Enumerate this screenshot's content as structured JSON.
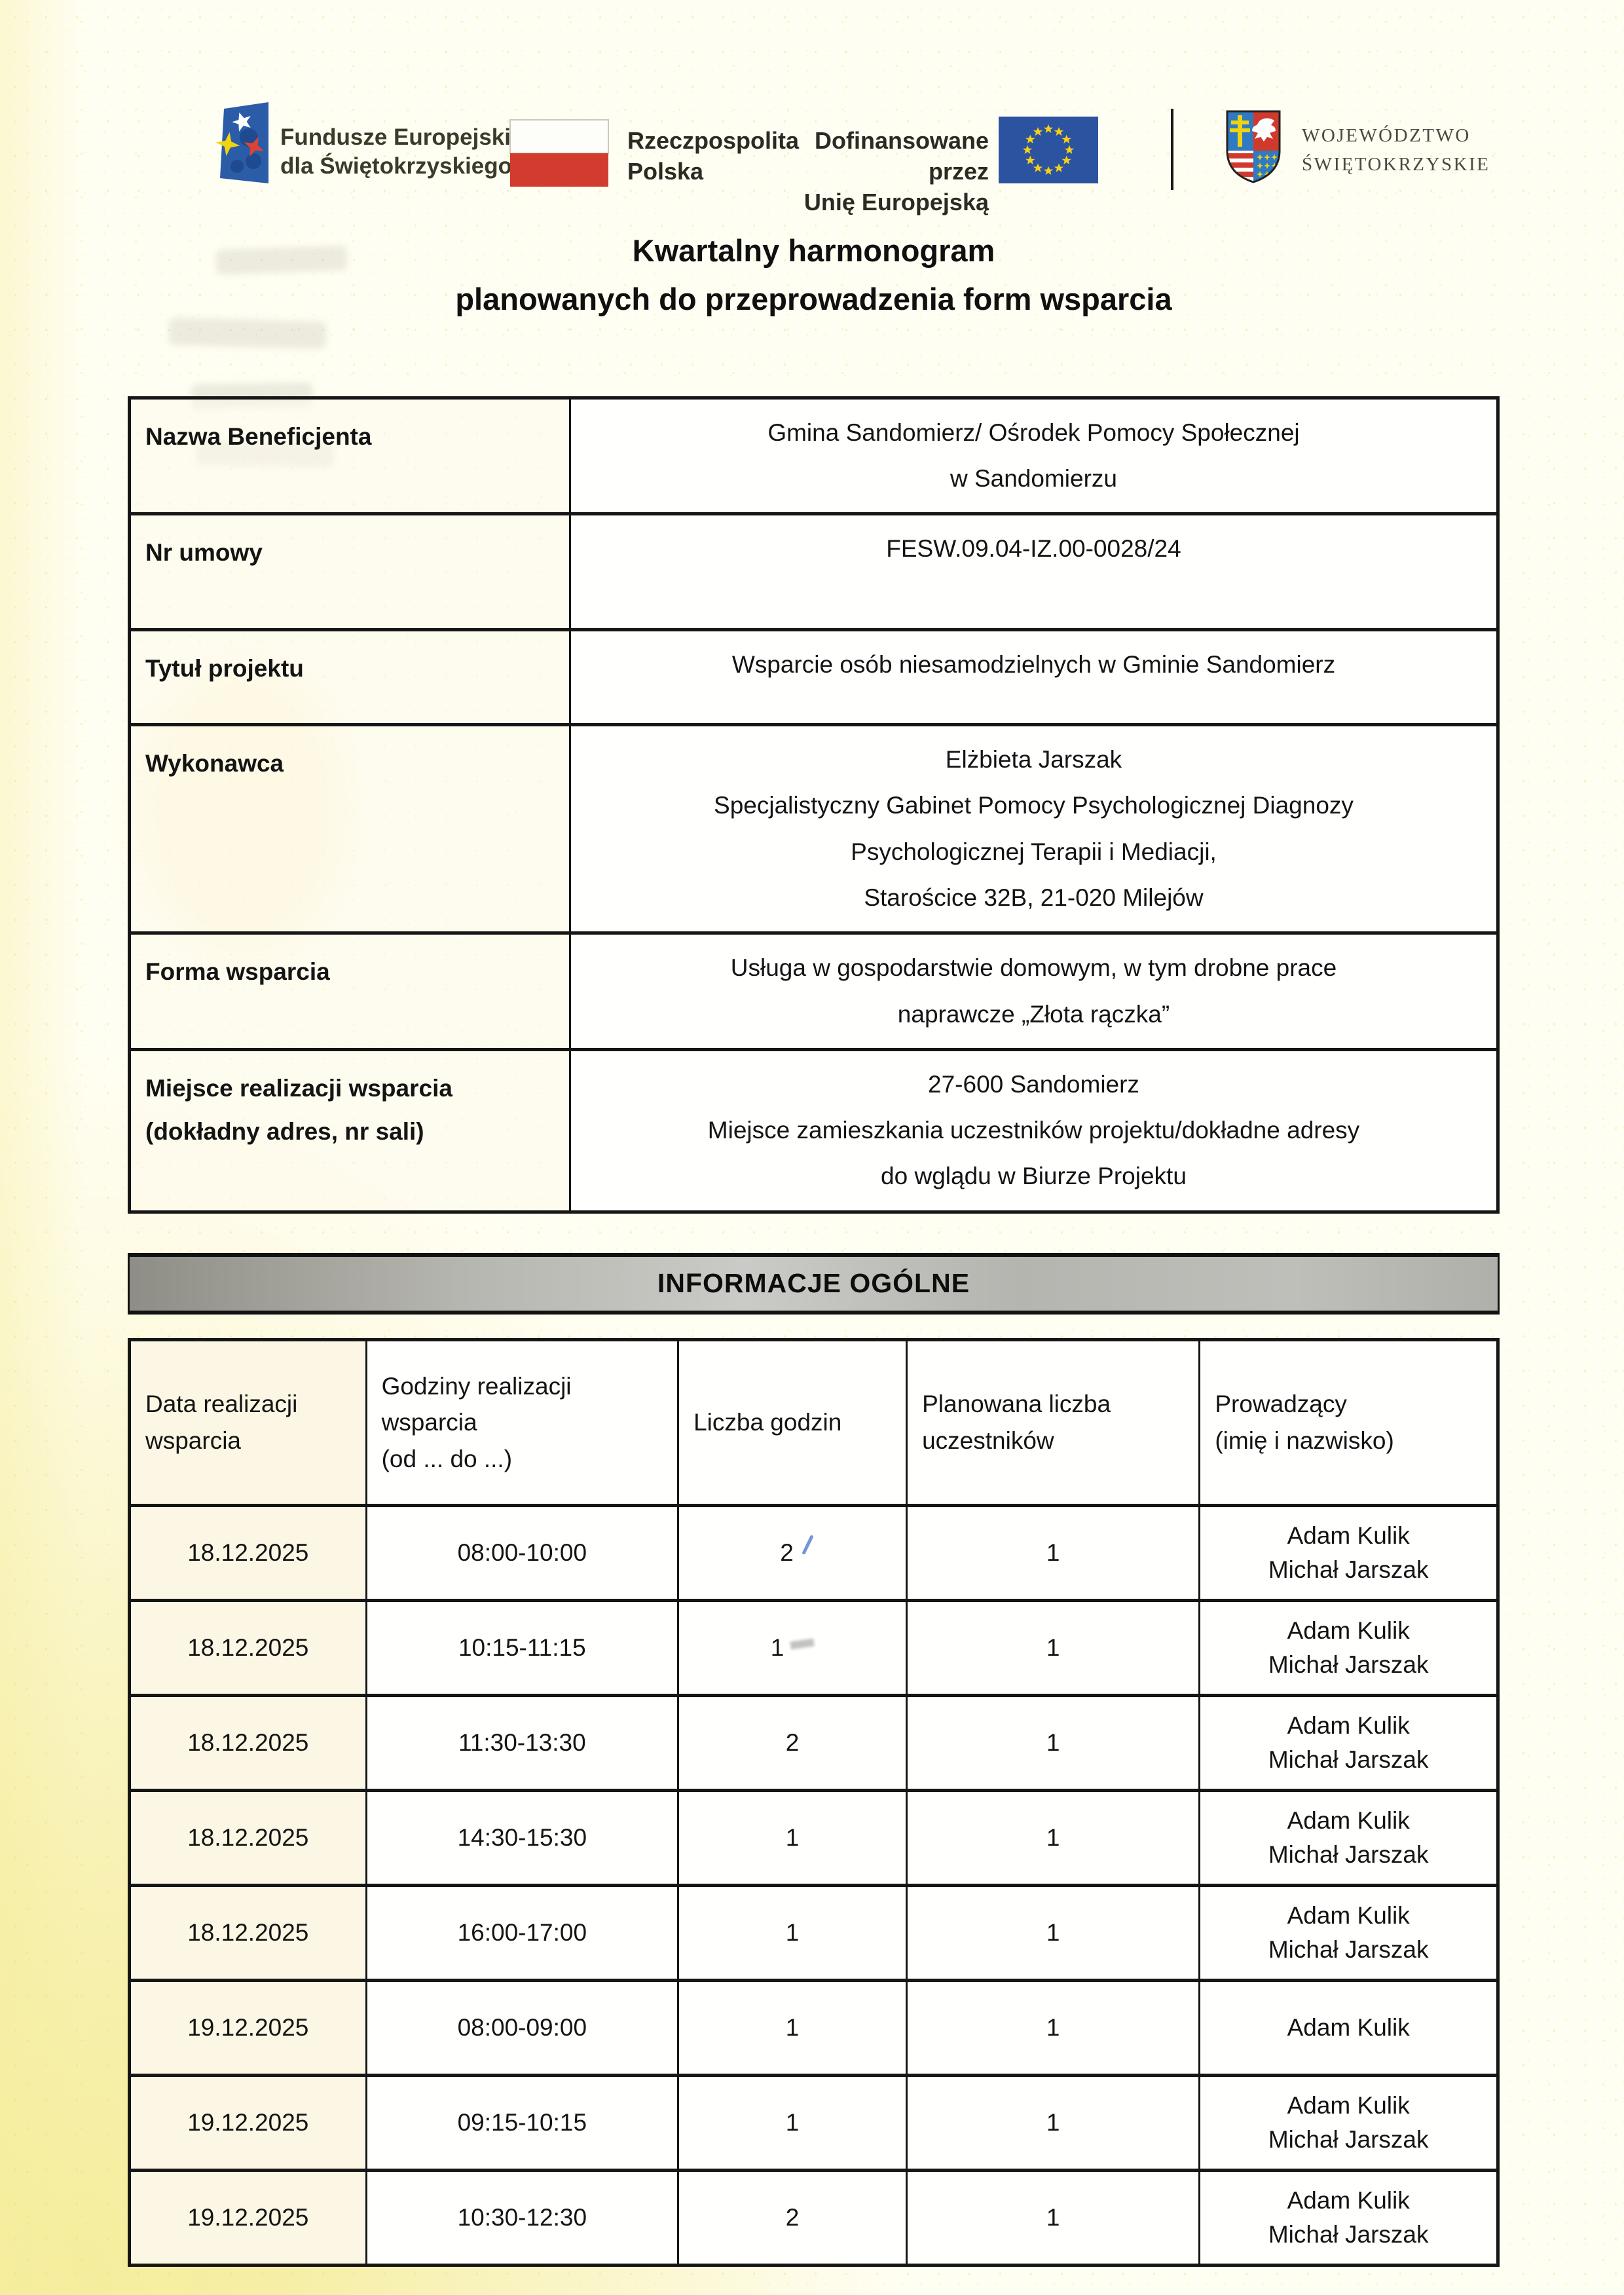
{
  "colors": {
    "paper": "#fffef2",
    "ink": "#141414",
    "fe_blue": "#2b5ca8",
    "flag_red": "#d23c2e",
    "eu_blue": "#2c53a0",
    "star_yellow": "#f7d117",
    "section_bar_gray": "#b5b5b0"
  },
  "header": {
    "fe_logo": {
      "line1": "Fundusze Europejskie",
      "line2": "dla Świętokrzyskiego"
    },
    "poland": {
      "line1": "Rzeczpospolita",
      "line2": "Polska"
    },
    "cofunded": {
      "line1": "Dofinansowane przez",
      "line2": "Unię Europejską"
    },
    "voivodeship": {
      "line1": "WOJEWÓDZTWO",
      "line2": "ŚWIĘTOKRZYSKIE"
    }
  },
  "title": {
    "line1": "Kwartalny harmonogram",
    "line2": "planowanych do przeprowadzenia form wsparcia"
  },
  "info_table": {
    "rows": [
      {
        "cls": "r-nazwa",
        "label_lines": [
          "Nazwa Beneficjenta"
        ],
        "value_lines": [
          "Gmina Sandomierz/ Ośrodek Pomocy Społecznej",
          "w Sandomierzu"
        ]
      },
      {
        "cls": "r-umowa",
        "label_lines": [
          "Nr umowy"
        ],
        "value_lines": [
          "FESW.09.04-IZ.00-0028/24"
        ]
      },
      {
        "cls": "r-tytul",
        "label_lines": [
          "Tytuł projektu"
        ],
        "value_lines": [
          "Wsparcie osób niesamodzielnych w Gminie Sandomierz"
        ]
      },
      {
        "cls": "r-wykonawca",
        "label_lines": [
          "Wykonawca"
        ],
        "value_lines": [
          "Elżbieta Jarszak",
          "Specjalistyczny Gabinet Pomocy Psychologicznej Diagnozy",
          "Psychologicznej Terapii i Mediacji,",
          "Starościce 32B, 21-020 Milejów"
        ]
      },
      {
        "cls": "r-forma",
        "label_lines": [
          "Forma wsparcia"
        ],
        "value_lines": [
          "Usługa w gospodarstwie domowym, w tym drobne prace",
          "naprawcze „Złota rączka”"
        ]
      },
      {
        "cls": "r-miejsce",
        "label_lines": [
          "Miejsce realizacji wsparcia",
          "(dokładny adres, nr sali)"
        ],
        "value_lines": [
          "27-600 Sandomierz",
          "Miejsce zamieszkania uczestników projektu/dokładne adresy",
          "do wglądu w Biurze Projektu"
        ]
      }
    ]
  },
  "section_bar": {
    "label": "INFORMACJE OGÓLNE"
  },
  "schedule_table": {
    "column_lines": [
      [
        "Data realizacji",
        "wsparcia"
      ],
      [
        "Godziny realizacji",
        "wsparcia",
        "(od ... do ...)"
      ],
      [
        "Liczba godzin"
      ],
      [
        "Planowana liczba",
        "uczestników"
      ],
      [
        "Prowadzący",
        "(imię i nazwisko)"
      ]
    ],
    "rows": [
      {
        "date": "18.12.2025",
        "time": "08:00-10:00",
        "hours": "2",
        "participants": "1",
        "leaders": [
          "Adam Kulik",
          "Michał Jarszak"
        ],
        "mark": "blue-pen-stroke"
      },
      {
        "date": "18.12.2025",
        "time": "10:15-11:15",
        "hours": "1",
        "participants": "1",
        "leaders": [
          "Adam Kulik",
          "Michał Jarszak"
        ],
        "mark": "gray-smudge"
      },
      {
        "date": "18.12.2025",
        "time": "11:30-13:30",
        "hours": "2",
        "participants": "1",
        "leaders": [
          "Adam Kulik",
          "Michał Jarszak"
        ],
        "mark": ""
      },
      {
        "date": "18.12.2025",
        "time": "14:30-15:30",
        "hours": "1",
        "participants": "1",
        "leaders": [
          "Adam Kulik",
          "Michał Jarszak"
        ],
        "mark": ""
      },
      {
        "date": "18.12.2025",
        "time": "16:00-17:00",
        "hours": "1",
        "participants": "1",
        "leaders": [
          "Adam Kulik",
          "Michał Jarszak"
        ],
        "mark": ""
      },
      {
        "date": "19.12.2025",
        "time": "08:00-09:00",
        "hours": "1",
        "participants": "1",
        "leaders": [
          "Adam Kulik"
        ],
        "mark": ""
      },
      {
        "date": "19.12.2025",
        "time": "09:15-10:15",
        "hours": "1",
        "participants": "1",
        "leaders": [
          "Adam Kulik",
          "Michał Jarszak"
        ],
        "mark": ""
      },
      {
        "date": "19.12.2025",
        "time": "10:30-12:30",
        "hours": "2",
        "participants": "1",
        "leaders": [
          "Adam Kulik",
          "Michał Jarszak"
        ],
        "mark": ""
      }
    ]
  }
}
